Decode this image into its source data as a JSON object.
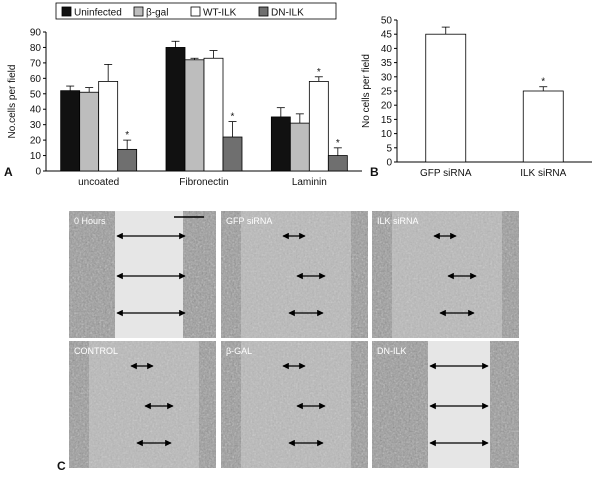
{
  "panel_labels": {
    "a": "A",
    "b": "B",
    "c": "C"
  },
  "colors": {
    "uninfected": "#111111",
    "bgal": "#bdbdbd",
    "wtilk": "#ffffff",
    "dnilk": "#6f6f6f",
    "gfp": "#ffffff",
    "ilk": "#ffffff"
  },
  "chart_data": [
    {
      "type": "bar",
      "panel": "A",
      "ylabel": "No.cells per field",
      "xlabel": "",
      "ylim": [
        0,
        90
      ],
      "yticks": [
        0,
        10,
        20,
        30,
        40,
        50,
        60,
        70,
        80,
        90
      ],
      "grid": false,
      "legend_position": "top",
      "categories": [
        "uncoated",
        "Fibronectin",
        "Laminin"
      ],
      "series": [
        {
          "name": "Uninfected",
          "color": "#111111",
          "values": [
            52,
            80,
            35
          ],
          "errors": [
            3,
            4,
            6
          ],
          "significant": [
            false,
            false,
            false
          ]
        },
        {
          "name": "β-gal",
          "color": "#bdbdbd",
          "values": [
            51,
            72,
            31
          ],
          "errors": [
            3,
            1,
            6
          ],
          "significant": [
            false,
            false,
            false
          ]
        },
        {
          "name": "WT-ILK",
          "color": "#ffffff",
          "values": [
            58,
            73,
            58
          ],
          "errors": [
            11,
            5,
            3
          ],
          "significant": [
            false,
            false,
            true
          ]
        },
        {
          "name": "DN-ILK",
          "color": "#6f6f6f",
          "values": [
            14,
            22,
            10
          ],
          "errors": [
            6,
            10,
            5
          ],
          "significant": [
            true,
            true,
            true
          ]
        }
      ],
      "significance_marker": "*"
    },
    {
      "type": "bar",
      "panel": "B",
      "ylabel": "No cells per field",
      "xlabel": "",
      "ylim": [
        0,
        50
      ],
      "yticks": [
        0,
        5,
        10,
        15,
        20,
        25,
        30,
        35,
        40,
        45,
        50
      ],
      "grid": false,
      "categories": [
        "GFP siRNA",
        "ILK siRNA"
      ],
      "values": [
        45,
        25
      ],
      "errors": [
        2.5,
        1.5
      ],
      "significant": [
        false,
        true
      ],
      "significance_marker": "*"
    }
  ],
  "micrographs": [
    {
      "label": "0 Hours",
      "scale_bar": true,
      "gap": "wide",
      "arrows": 3
    },
    {
      "label": "GFP siRNA",
      "scale_bar": false,
      "gap": "closed",
      "arrows": 3
    },
    {
      "label": "ILK siRNA",
      "scale_bar": false,
      "gap": "closed",
      "arrows": 3
    },
    {
      "label": "CONTROL",
      "scale_bar": false,
      "gap": "closed",
      "arrows": 3
    },
    {
      "label": "β-GAL",
      "scale_bar": false,
      "gap": "closed",
      "arrows": 3
    },
    {
      "label": "DN-ILK",
      "scale_bar": false,
      "gap": "wide",
      "arrows": 3
    }
  ]
}
